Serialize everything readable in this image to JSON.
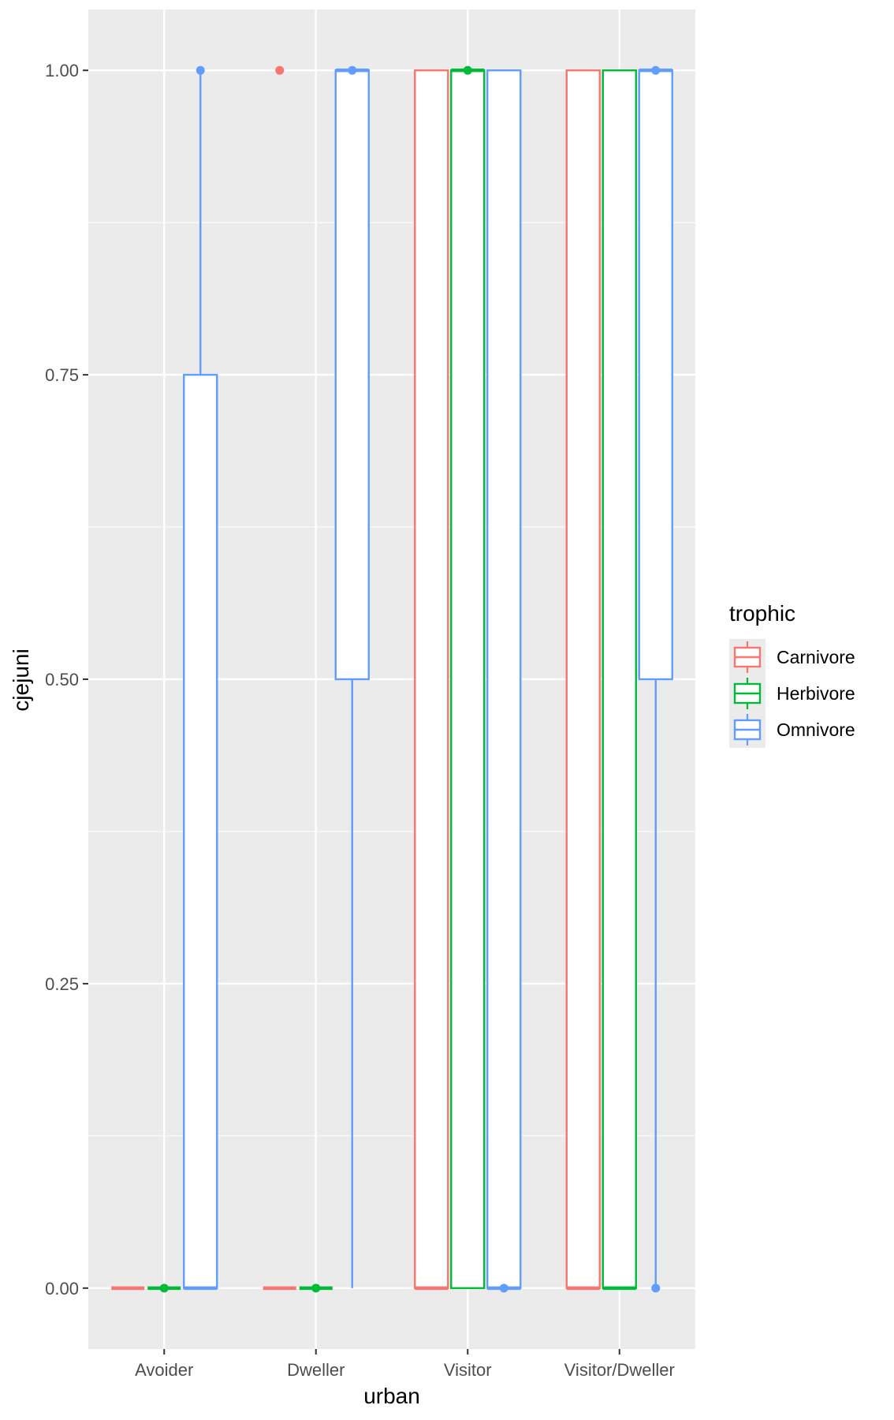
{
  "chart_data": {
    "type": "boxplot",
    "title": "",
    "xlabel": "urban",
    "ylabel": "cjejuni",
    "ylim": [
      -0.05,
      1.05
    ],
    "y_ticks": [
      "0.00",
      "0.25",
      "0.50",
      "0.75",
      "1.00"
    ],
    "y_tick_values": [
      0,
      0.25,
      0.5,
      0.75,
      1
    ],
    "categories": [
      "Avoider",
      "Dweller",
      "Visitor",
      "Visitor/Dweller"
    ],
    "grid": true,
    "legend": {
      "title": "trophic",
      "position": "right",
      "entries": [
        "Carnivore",
        "Herbivore",
        "Omnivore"
      ]
    },
    "colors": {
      "panel": "#EBEBEB",
      "grid": "#FFFFFF",
      "Carnivore": "#F8766D",
      "Herbivore": "#00BA38",
      "Omnivore": "#619CFF"
    },
    "series": [
      {
        "name": "Carnivore",
        "boxes": [
          {
            "category": "Avoider",
            "lower_whisker": 0,
            "q1": 0,
            "median": 0,
            "q3": 0,
            "upper_whisker": 0,
            "outliers": []
          },
          {
            "category": "Dweller",
            "lower_whisker": 0,
            "q1": 0,
            "median": 0,
            "q3": 0,
            "upper_whisker": 0,
            "outliers": [
              1
            ]
          },
          {
            "category": "Visitor",
            "lower_whisker": 0,
            "q1": 0,
            "median": 0,
            "q3": 1,
            "upper_whisker": 1,
            "outliers": []
          },
          {
            "category": "Visitor/Dweller",
            "lower_whisker": 0,
            "q1": 0,
            "median": 0,
            "q3": 1,
            "upper_whisker": 1,
            "outliers": []
          }
        ]
      },
      {
        "name": "Herbivore",
        "boxes": [
          {
            "category": "Avoider",
            "lower_whisker": 0,
            "q1": 0,
            "median": 0,
            "q3": 0,
            "upper_whisker": 0,
            "outliers": [
              0
            ]
          },
          {
            "category": "Dweller",
            "lower_whisker": 0,
            "q1": 0,
            "median": 0,
            "q3": 0,
            "upper_whisker": 0,
            "outliers": [
              0
            ]
          },
          {
            "category": "Visitor",
            "lower_whisker": 0,
            "q1": 0,
            "median": 1,
            "q3": 1,
            "upper_whisker": 1,
            "outliers": [
              1
            ]
          },
          {
            "category": "Visitor/Dweller",
            "lower_whisker": 0,
            "q1": 0,
            "median": 0,
            "q3": 1,
            "upper_whisker": 1,
            "outliers": []
          }
        ]
      },
      {
        "name": "Omnivore",
        "boxes": [
          {
            "category": "Avoider",
            "lower_whisker": 0,
            "q1": 0,
            "median": 0,
            "q3": 0.75,
            "upper_whisker": 1,
            "outliers": [
              1
            ]
          },
          {
            "category": "Dweller",
            "lower_whisker": 0,
            "q1": 0.5,
            "median": 1,
            "q3": 1,
            "upper_whisker": 1,
            "outliers": [
              1
            ]
          },
          {
            "category": "Visitor",
            "lower_whisker": 0,
            "q1": 0,
            "median": 0,
            "q3": 1,
            "upper_whisker": 1,
            "outliers": [
              0
            ]
          },
          {
            "category": "Visitor/Dweller",
            "lower_whisker": 0,
            "q1": 0.5,
            "median": 1,
            "q3": 1,
            "upper_whisker": 1,
            "outliers": [
              0,
              1
            ]
          }
        ]
      }
    ]
  }
}
